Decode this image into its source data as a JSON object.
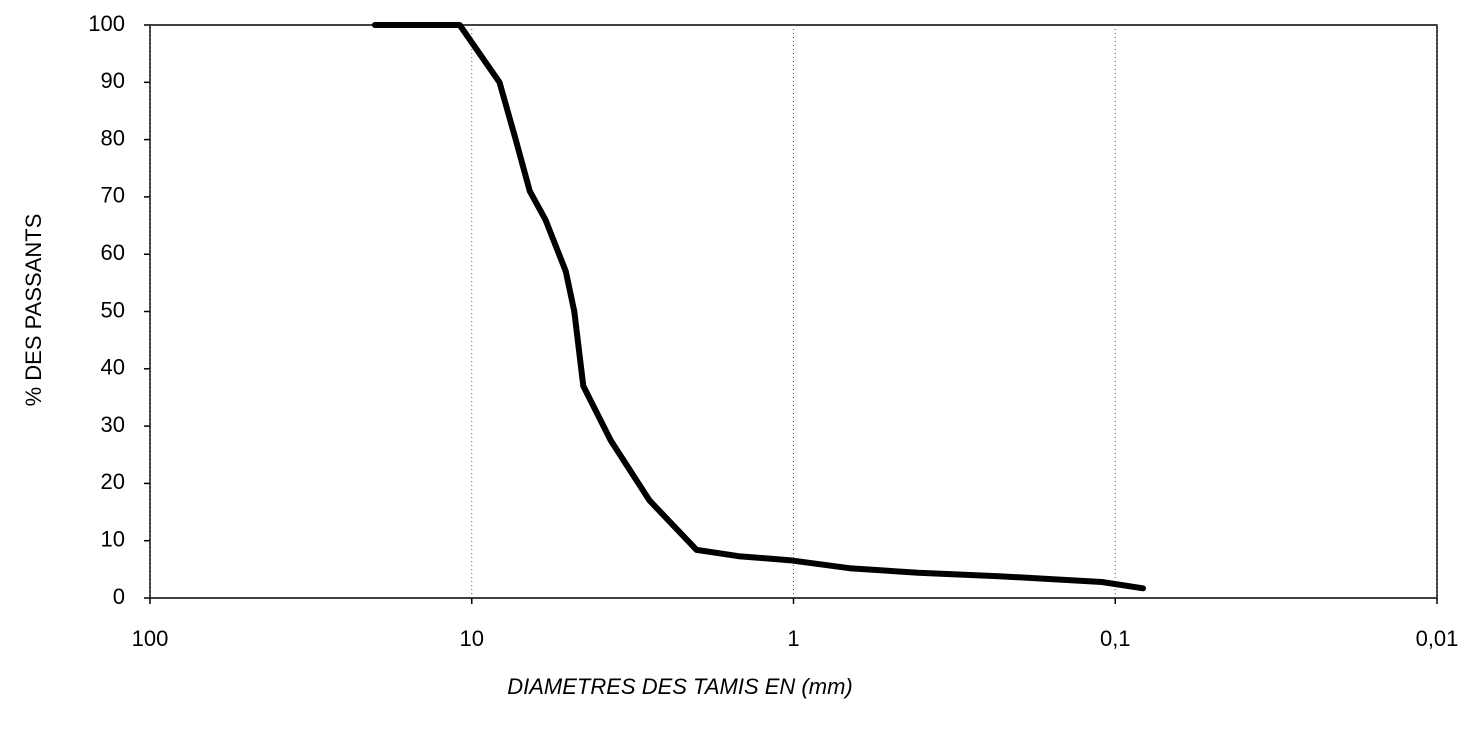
{
  "chart_data": {
    "type": "line",
    "xlabel": "DIAMETRES DES TAMIS EN (mm)",
    "ylabel": "% DES PASSANTS",
    "log_x": true,
    "grid": true,
    "xlim": [
      100,
      0.01
    ],
    "xticks": [
      100,
      10,
      1,
      {
        "value": 0.1,
        "label": "0,1"
      },
      {
        "value": 0.01,
        "label": "0,01"
      }
    ],
    "ylim": [
      0,
      100
    ],
    "yticks": [
      0,
      10,
      20,
      30,
      40,
      50,
      60,
      70,
      80,
      90,
      100
    ],
    "series": [
      {
        "color": "#000000",
        "x": [
          20,
          10.9,
          8.2,
          7.3,
          6.6,
          5.9,
          5.1,
          4.8,
          4.5,
          3.7,
          2.8,
          2.0,
          1.48,
          1.03,
          0.67,
          0.41,
          0.23,
          0.11,
          0.082
        ],
        "values": [
          100,
          100,
          90,
          80,
          71,
          66,
          57,
          50,
          37,
          27.5,
          17,
          8.4,
          7.3,
          6.6,
          5.2,
          4.4,
          3.8,
          2.8,
          1.7
        ]
      }
    ]
  }
}
